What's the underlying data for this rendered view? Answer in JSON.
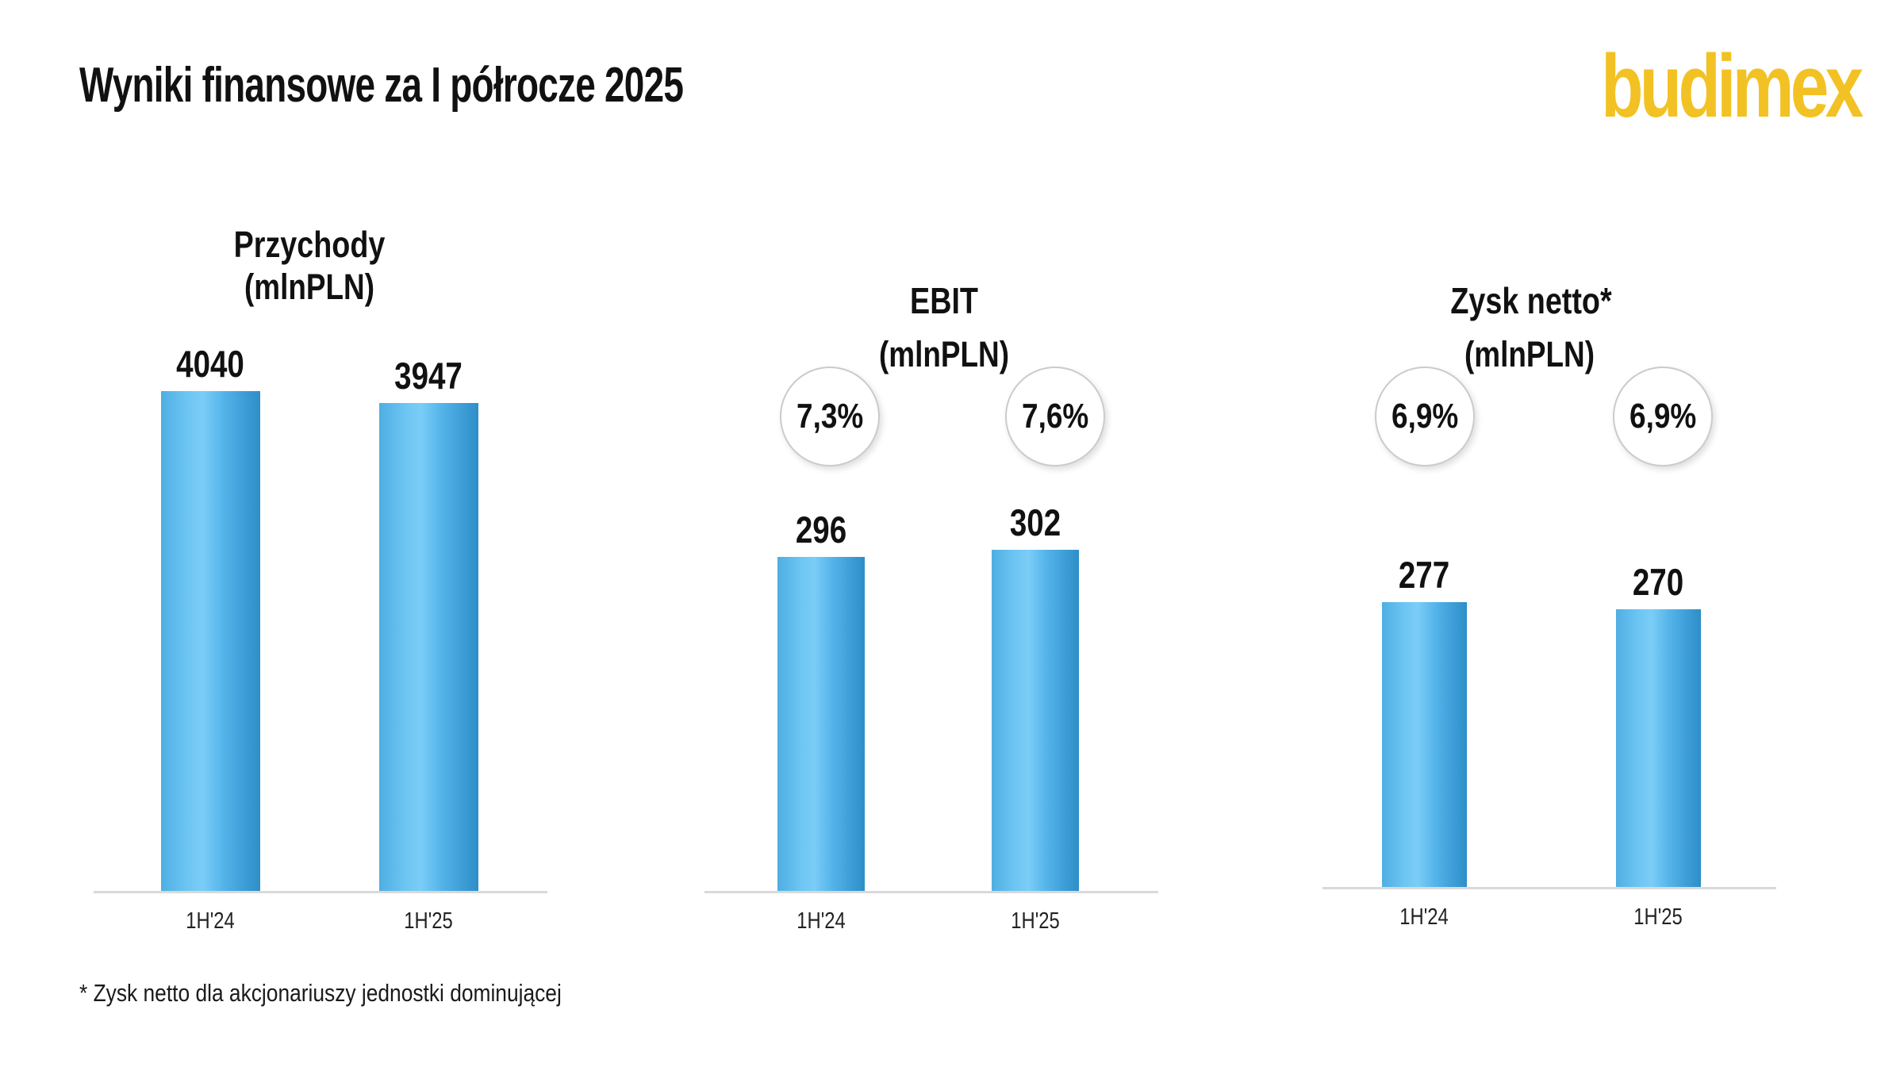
{
  "page": {
    "title": "Wyniki finansowe za I półrocze 2025",
    "logo_text": "budimex",
    "footnote": "* Zysk netto dla akcjonariuszy jednostki dominującej"
  },
  "colors": {
    "bar_blue": "#47ACE6",
    "bar_blue_light": "#7BCDF7",
    "bar_blue_dark": "#2E8EC8",
    "logo_gold": "#F2C224",
    "axis_gray": "#D9D9D9",
    "text_black": "#111111",
    "circle_border_gray": "#CBCBCB"
  },
  "chart_data": [
    {
      "type": "bar",
      "title": "Przychody",
      "subtitle": "(mlnPLN)",
      "categories": [
        "1H'24",
        "1H'25"
      ],
      "values": [
        4040,
        3947
      ],
      "value_labels": [
        "4040",
        "3947"
      ],
      "ylim": [
        0,
        4300
      ],
      "grid": false,
      "legend": "none"
    },
    {
      "type": "bar",
      "title": "EBIT",
      "subtitle": "(mlnPLN)",
      "categories": [
        "1H'24",
        "1H'25"
      ],
      "values": [
        296,
        302
      ],
      "value_labels": [
        "296",
        "302"
      ],
      "margins": [
        "7,3%",
        "7,6%"
      ],
      "ylim": [
        0,
        310
      ],
      "grid": false,
      "legend": "none"
    },
    {
      "type": "bar",
      "title": "Zysk netto*",
      "subtitle": "(mlnPLN)",
      "categories": [
        "1H'24",
        "1H'25"
      ],
      "values": [
        277,
        270
      ],
      "value_labels": [
        "277",
        "270"
      ],
      "margins": [
        "6,9%",
        "6,9%"
      ],
      "ylim": [
        0,
        290
      ],
      "grid": false,
      "legend": "none"
    }
  ]
}
